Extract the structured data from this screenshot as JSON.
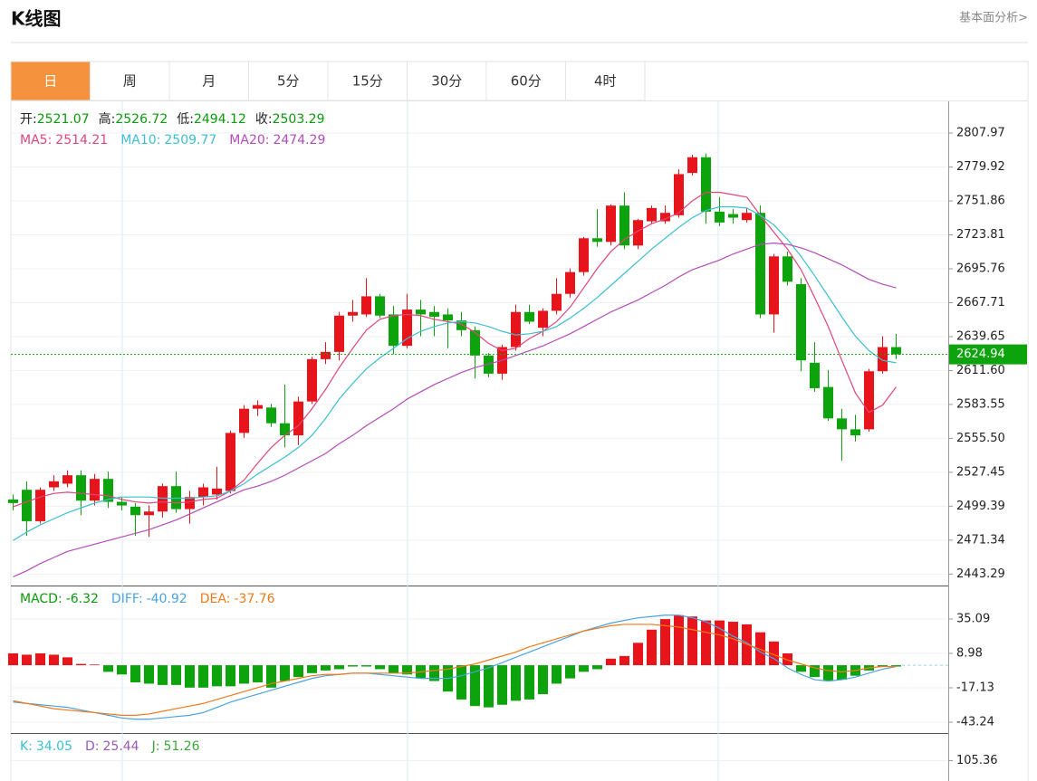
{
  "header": {
    "title": "K线图",
    "link": "基本面分析>"
  },
  "tabs": [
    "日",
    "周",
    "月",
    "5分",
    "15分",
    "30分",
    "60分",
    "4时"
  ],
  "info": [
    {
      "label": "开:",
      "value": 2521.07
    },
    {
      "label": "高:",
      "value": 2526.72
    },
    {
      "label": "低:",
      "value": 2494.12
    },
    {
      "label": "收:",
      "value": 2503.29
    }
  ],
  "chart_data": [
    {
      "type": "candlestick",
      "ylim": [
        2435.3,
        2834.2
      ],
      "yticks": [
        2807.97,
        2779.92,
        2751.86,
        2723.81,
        2695.76,
        2667.71,
        2639.65,
        {
          "value": 2611.6,
          "label": "2611.60"
        },
        2583.55,
        {
          "value": 2555.5,
          "label": "2555.50"
        },
        2527.45,
        2499.39,
        2471.34,
        2443.29
      ],
      "grid": true,
      "up_color": "#e8141c",
      "down_color": "#0ca30c",
      "current_price": 2624.94,
      "current_color": "#0ca30c",
      "open": [
        2505,
        2513,
        2487,
        2515,
        2518,
        2525,
        2504,
        2522,
        2503,
        2499,
        2492,
        2495,
        2516,
        2497,
        2507,
        2509,
        2512,
        2560,
        2580,
        2581,
        2568,
        2558,
        2586,
        2621,
        2627,
        2657,
        2658,
        2673,
        2658,
        2632,
        2662,
        2660,
        2658,
        2653,
        2645,
        2624,
        2609,
        2631,
        2660,
        2647,
        2661,
        2675,
        2693,
        2721,
        2718,
        2748,
        2715,
        2735,
        2735,
        2740,
        2775,
        2788,
        2743,
        2741,
        2736,
        2742,
        2658,
        2706,
        2683,
        2618,
        2598,
        2572,
        2563,
        2563,
        2611,
        2631
      ],
      "high": [
        2509,
        2520,
        2515,
        2525,
        2529,
        2529,
        2526,
        2528,
        2507,
        2502,
        2500,
        2518,
        2528,
        2512,
        2518,
        2532,
        2562,
        2583,
        2587,
        2584,
        2600,
        2590,
        2623,
        2635,
        2660,
        2670,
        2688,
        2675,
        2665,
        2675,
        2670,
        2665,
        2663,
        2660,
        2648,
        2626,
        2633,
        2666,
        2666,
        2663,
        2688,
        2696,
        2722,
        2745,
        2749,
        2759,
        2737,
        2748,
        2748,
        2778,
        2790,
        2791,
        2755,
        2745,
        2746,
        2748,
        2708,
        2710,
        2688,
        2635,
        2612,
        2580,
        2575,
        2613,
        2640,
        2642
      ],
      "low": [
        2496,
        2475,
        2485,
        2512,
        2515,
        2492,
        2500,
        2498,
        2496,
        2475,
        2474,
        2490,
        2494,
        2485,
        2500,
        2505,
        2510,
        2556,
        2574,
        2565,
        2548,
        2550,
        2584,
        2617,
        2620,
        2652,
        2656,
        2655,
        2625,
        2630,
        2640,
        2640,
        2630,
        2640,
        2605,
        2606,
        2604,
        2628,
        2650,
        2640,
        2658,
        2672,
        2690,
        2714,
        2715,
        2712,
        2712,
        2733,
        2733,
        2738,
        2773,
        2733,
        2731,
        2733,
        2734,
        2655,
        2643,
        2682,
        2611,
        2594,
        2570,
        2537,
        2553,
        2561,
        2609,
        2621
      ],
      "close": [
        2502,
        2487,
        2513,
        2520,
        2525,
        2504,
        2522,
        2503,
        2500,
        2492,
        2495,
        2516,
        2497,
        2507,
        2515,
        2514,
        2560,
        2580,
        2583,
        2568,
        2558,
        2586,
        2621,
        2627,
        2657,
        2660,
        2673,
        2657,
        2632,
        2662,
        2658,
        2656,
        2653,
        2645,
        2624,
        2609,
        2631,
        2660,
        2652,
        2661,
        2675,
        2693,
        2721,
        2718,
        2748,
        2715,
        2736,
        2746,
        2742,
        2774,
        2788,
        2743,
        2734,
        2738,
        2742,
        2658,
        2706,
        2685,
        2620,
        2597,
        2572,
        2563,
        2558,
        2611,
        2631,
        2624.94
      ],
      "series": [
        {
          "name": "MA5:",
          "current": 2514.21,
          "color": "#e0457b",
          "values": [
            2499,
            2503,
            2507,
            2510,
            2511,
            2510,
            2509,
            2508,
            2505,
            2503,
            2502,
            2503,
            2502,
            2503,
            2505,
            2506,
            2512,
            2521,
            2535,
            2548,
            2558,
            2566,
            2580,
            2596,
            2614,
            2630,
            2645,
            2654,
            2657,
            2658,
            2657,
            2654,
            2652,
            2650,
            2643,
            2634,
            2628,
            2630,
            2638,
            2644,
            2652,
            2664,
            2680,
            2696,
            2710,
            2720,
            2727,
            2733,
            2737,
            2742,
            2752,
            2759,
            2759,
            2757,
            2755,
            2740,
            2726,
            2712,
            2695,
            2672,
            2648,
            2620,
            2593,
            2577,
            2583,
            2598
          ]
        },
        {
          "name": "MA10:",
          "current": 2509.77,
          "color": "#3bbfd0",
          "values": [
            2471,
            2478,
            2484,
            2489,
            2494,
            2498,
            2502,
            2505,
            2507,
            2507,
            2507,
            2506,
            2506,
            2506,
            2507,
            2508,
            2512,
            2518,
            2526,
            2533,
            2540,
            2548,
            2558,
            2572,
            2588,
            2601,
            2613,
            2622,
            2630,
            2638,
            2644,
            2648,
            2651,
            2652,
            2651,
            2648,
            2644,
            2641,
            2642,
            2644,
            2648,
            2655,
            2663,
            2672,
            2682,
            2692,
            2702,
            2712,
            2721,
            2730,
            2738,
            2744,
            2747,
            2747,
            2746,
            2740,
            2732,
            2720,
            2706,
            2690,
            2673,
            2656,
            2640,
            2628,
            2620,
            2618
          ]
        },
        {
          "name": "MA20:",
          "current": 2474.29,
          "color": "#b34cb8",
          "values": [
            2441,
            2446,
            2452,
            2457,
            2462,
            2465,
            2468,
            2471,
            2474,
            2477,
            2480,
            2484,
            2488,
            2493,
            2498,
            2503,
            2508,
            2513,
            2516,
            2520,
            2525,
            2531,
            2537,
            2543,
            2551,
            2558,
            2566,
            2573,
            2580,
            2588,
            2594,
            2600,
            2605,
            2610,
            2614,
            2617,
            2620,
            2624,
            2628,
            2632,
            2637,
            2642,
            2648,
            2654,
            2660,
            2665,
            2670,
            2676,
            2682,
            2689,
            2695,
            2699,
            2703,
            2708,
            2712,
            2716,
            2717,
            2716,
            2713,
            2709,
            2704,
            2699,
            2693,
            2687,
            2683,
            2680
          ]
        }
      ]
    },
    {
      "type": "macd",
      "ylim": [
        -50.11,
        58.45
      ],
      "yticks": [
        35.09,
        8.98,
        -17.13,
        -43.24
      ],
      "grid": true,
      "bars": {
        "name": "MACD:",
        "current": -6.32,
        "up_color": "#e8141c",
        "down_color": "#0ca30c",
        "values": [
          9,
          8,
          9,
          8,
          6,
          1,
          0.5,
          -5,
          -7,
          -13,
          -14,
          -15,
          -15,
          -17,
          -17,
          -16,
          -16,
          -14,
          -13,
          -17,
          -12,
          -9,
          -6,
          -4,
          -3,
          -1,
          -1,
          -3,
          -6,
          -7,
          -10,
          -12,
          -20,
          -26,
          -31,
          -32,
          -30,
          -27,
          -26,
          -22,
          -14,
          -10,
          -5,
          -3,
          5,
          7,
          17,
          27,
          35,
          38,
          37,
          34,
          34,
          33,
          31,
          25,
          18,
          9,
          -5,
          -9,
          -12,
          -11,
          -8,
          -4,
          -1,
          -1
        ]
      },
      "series": [
        {
          "name": "DIFF:",
          "current": -40.92,
          "color": "#4aa3e0",
          "values": [
            -28,
            -29,
            -30,
            -31,
            -32,
            -34,
            -36,
            -38,
            -40,
            -41,
            -41,
            -40,
            -39,
            -38,
            -36,
            -32,
            -28,
            -25,
            -22,
            -19,
            -16,
            -13,
            -10,
            -8,
            -7,
            -6,
            -6,
            -7,
            -8,
            -9,
            -10,
            -10,
            -10,
            -8,
            -5,
            -2,
            2,
            6,
            10,
            14,
            18,
            22,
            26,
            29,
            32,
            34,
            36,
            37,
            38,
            38,
            36,
            33,
            28,
            22,
            17,
            10,
            5,
            -2,
            -7,
            -11,
            -12,
            -11,
            -9,
            -6,
            -3,
            -1
          ]
        },
        {
          "name": "DEA:",
          "current": -37.76,
          "color": "#f07a1a",
          "values": [
            -27,
            -29,
            -31,
            -33,
            -34,
            -35,
            -36,
            -37,
            -38,
            -38,
            -37,
            -35,
            -33,
            -31,
            -29,
            -26,
            -23,
            -20,
            -17,
            -14,
            -12,
            -10,
            -8,
            -7,
            -7,
            -6,
            -6,
            -6,
            -6,
            -6,
            -5,
            -4,
            -3,
            -1,
            1,
            4,
            7,
            10,
            14,
            17,
            20,
            23,
            26,
            28,
            30,
            31,
            31,
            31,
            30,
            29,
            27,
            25,
            23,
            20,
            16,
            12,
            8,
            4,
            1,
            -2,
            -4,
            -5,
            -4,
            -2,
            -1,
            -1
          ]
        }
      ]
    },
    {
      "type": "kdj",
      "ylim": [
        -40,
        140
      ],
      "yticks": [
        105.36
      ],
      "grid": true,
      "series": [
        {
          "name": "K:",
          "current": 34.05,
          "color": "#3bbfd0"
        },
        {
          "name": "D:",
          "current": 25.44,
          "color": "#9b59b6"
        },
        {
          "name": "J:",
          "current": 51.26,
          "color": "#3aa83a"
        }
      ]
    }
  ]
}
